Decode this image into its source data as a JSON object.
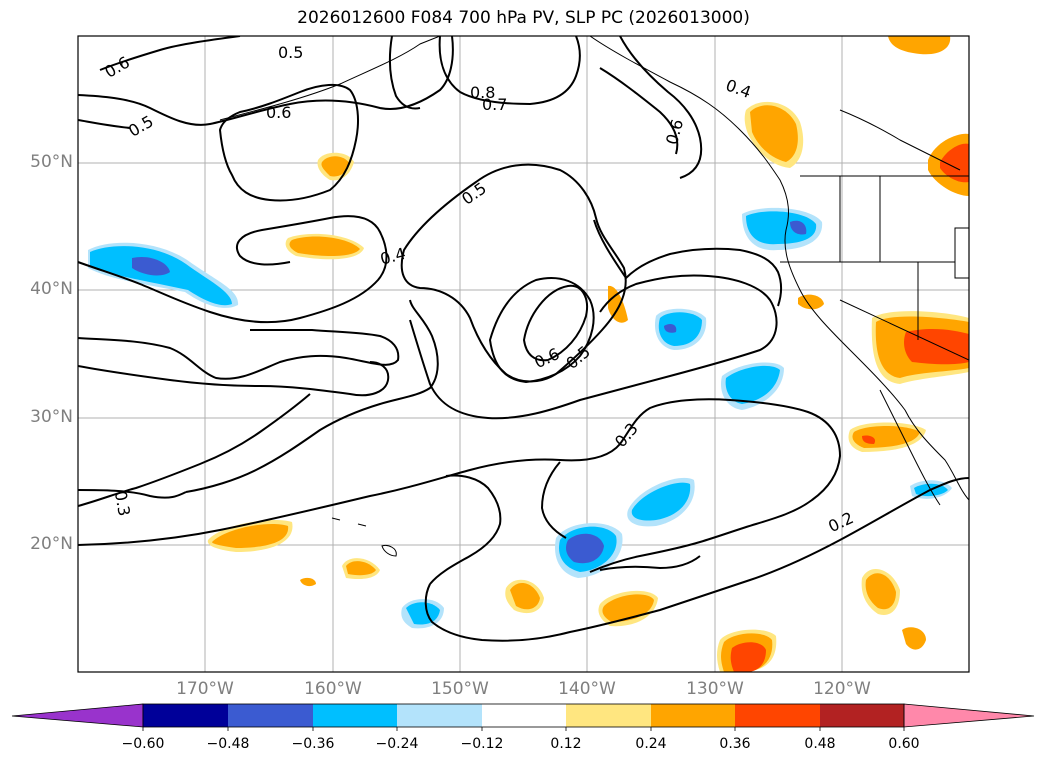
{
  "title": "2026012600 F084 700 hPa PV, SLP PC (2026013000)",
  "map": {
    "lat_labels": [
      "50°N",
      "40°N",
      "30°N",
      "20°N"
    ],
    "lon_labels": [
      "170°W",
      "160°W",
      "150°W",
      "140°W",
      "130°W",
      "120°W"
    ],
    "contour_labels": [
      "0.6",
      "0.5",
      "0.8",
      "0.7",
      "0.4",
      "0.6",
      "0.6",
      "0.5",
      "0.5",
      "0.4",
      "0.6",
      "0.5",
      "0.3",
      "0.3",
      "0.2"
    ]
  },
  "colorbar": {
    "levels": [
      "−0.60",
      "−0.48",
      "−0.36",
      "−0.24",
      "−0.12",
      "0.12",
      "0.24",
      "0.36",
      "0.48",
      "0.60"
    ],
    "colors": [
      "#9933cc",
      "#000099",
      "#3b5bd1",
      "#00bfff",
      "#b3e3fb",
      "#ffffff",
      "#ffe680",
      "#ffa500",
      "#ff4500",
      "#b22222",
      "#ff88aa"
    ]
  },
  "colors": {
    "grid": "#b0b0b0",
    "tick_label": "#7f7f7f",
    "contour": "#000000"
  }
}
